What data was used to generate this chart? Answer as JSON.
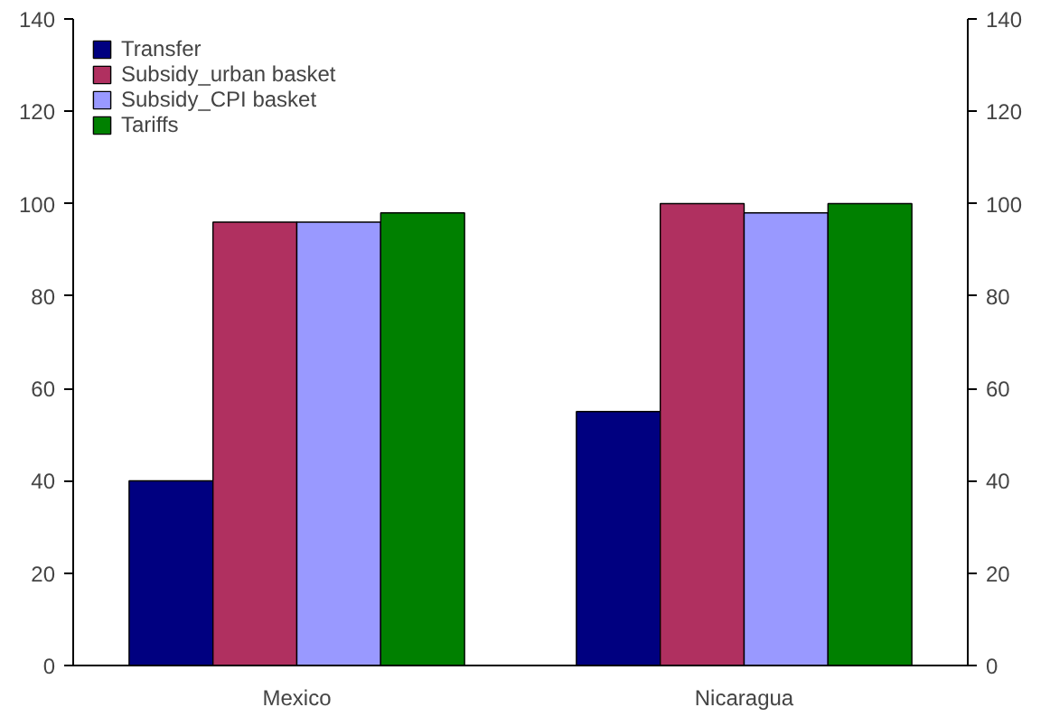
{
  "chart_data": {
    "type": "bar",
    "categories": [
      "Mexico",
      "Nicaragua"
    ],
    "series": [
      {
        "name": "Transfer",
        "color": "#000080",
        "values": [
          40,
          55
        ]
      },
      {
        "name": "Subsidy_urban basket",
        "color": "#b03060",
        "values": [
          96,
          100
        ]
      },
      {
        "name": "Subsidy_CPI basket",
        "color": "#9999ff",
        "values": [
          96,
          98
        ]
      },
      {
        "name": "Tariffs",
        "color": "#008000",
        "values": [
          98,
          100
        ]
      }
    ],
    "ylim": [
      0,
      140
    ],
    "yticks": [
      0,
      20,
      40,
      60,
      80,
      100,
      120,
      140
    ],
    "y2lim": [
      0,
      140
    ],
    "y2ticks": [
      0,
      20,
      40,
      60,
      80,
      100,
      120,
      140
    ],
    "grid": false,
    "legend": "top left"
  }
}
